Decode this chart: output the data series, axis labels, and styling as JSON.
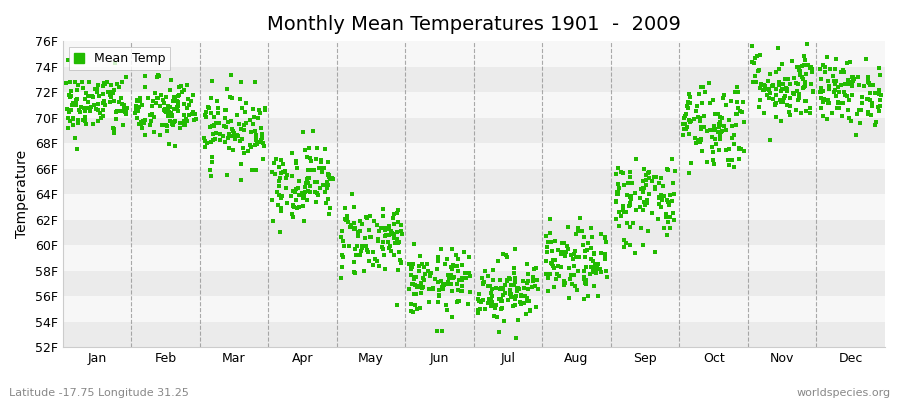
{
  "title": "Monthly Mean Temperatures 1901  -  2009",
  "ylabel": "Temperature",
  "footer_left": "Latitude -17.75 Longitude 31.25",
  "footer_right": "worldspecies.org",
  "legend_label": "Mean Temp",
  "dot_color": "#22bb00",
  "dot_size": 5,
  "ylim": [
    52,
    76
  ],
  "ytick_labels": [
    "52F",
    "54F",
    "56F",
    "58F",
    "60F",
    "62F",
    "64F",
    "66F",
    "68F",
    "70F",
    "72F",
    "74F",
    "76F"
  ],
  "ytick_values": [
    52,
    54,
    56,
    58,
    60,
    62,
    64,
    66,
    68,
    70,
    72,
    74,
    76
  ],
  "month_names": [
    "Jan",
    "Feb",
    "Mar",
    "Apr",
    "May",
    "Jun",
    "Jul",
    "Aug",
    "Sep",
    "Oct",
    "Nov",
    "Dec"
  ],
  "n_years": 109,
  "monthly_mean_temps_F": [
    71.0,
    70.5,
    69.2,
    65.0,
    60.5,
    57.0,
    56.5,
    58.5,
    63.5,
    69.5,
    72.5,
    72.0
  ],
  "monthly_std_temps_F": [
    1.3,
    1.3,
    1.5,
    1.5,
    1.5,
    1.3,
    1.3,
    1.4,
    1.8,
    1.8,
    1.5,
    1.3
  ],
  "band_colors": [
    "#ebebeb",
    "#f7f7f7"
  ],
  "background_color": "#ffffff",
  "grid_color": "#888888",
  "title_fontsize": 14,
  "axis_fontsize": 10,
  "tick_fontsize": 9,
  "footer_fontsize": 8
}
